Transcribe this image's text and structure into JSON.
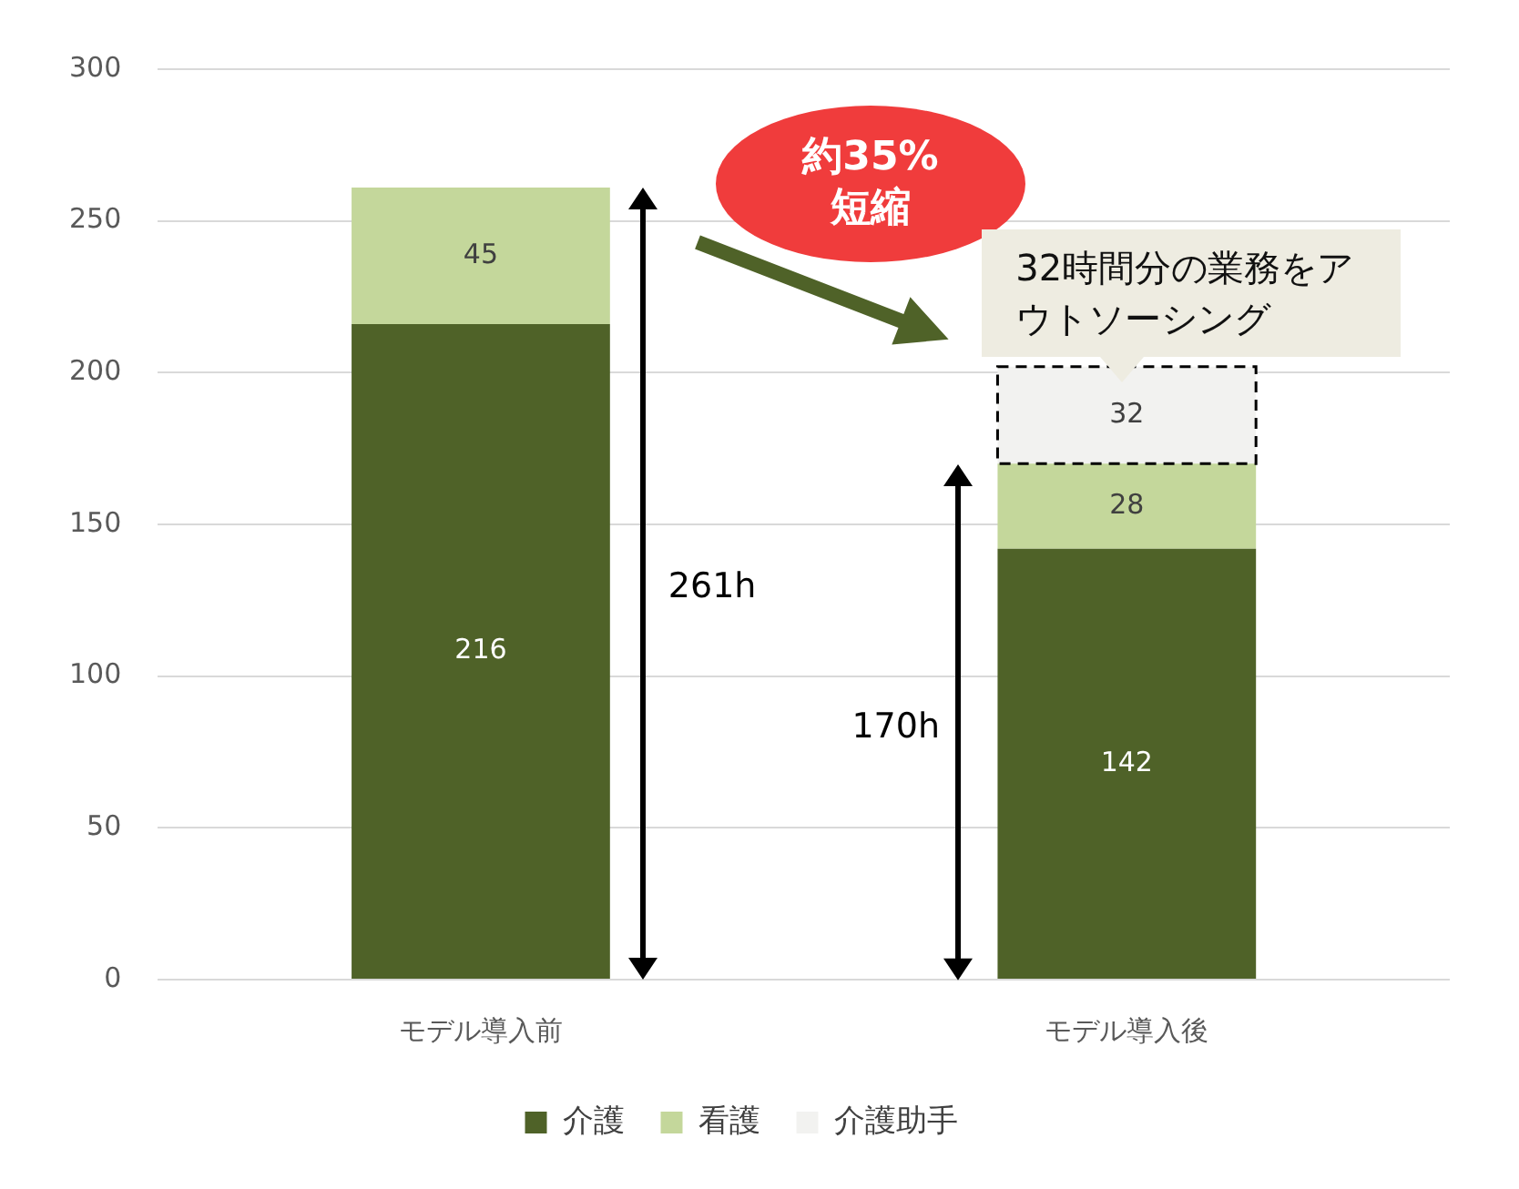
{
  "chart_data": {
    "type": "bar",
    "stacked": true,
    "categories": [
      "モデル導入前",
      "モデル導入後"
    ],
    "series": [
      {
        "name": "介護",
        "color": "#4f6228",
        "values": [
          216,
          142
        ]
      },
      {
        "name": "看護",
        "color": "#c4d79b",
        "values": [
          45,
          28
        ]
      },
      {
        "name": "介護助手",
        "color": "#f2f2f0",
        "values": [
          null,
          32
        ],
        "line_style": "dashed"
      }
    ],
    "ylim": [
      0,
      300
    ],
    "yticks": [
      0,
      50,
      100,
      150,
      200,
      250,
      300
    ],
    "grid": "y",
    "legend": "bottom",
    "data_labels": true,
    "annotations": [
      "約35%短縮",
      "32時間分の業務をアウトソーシング",
      "261h",
      "170h"
    ]
  }
}
